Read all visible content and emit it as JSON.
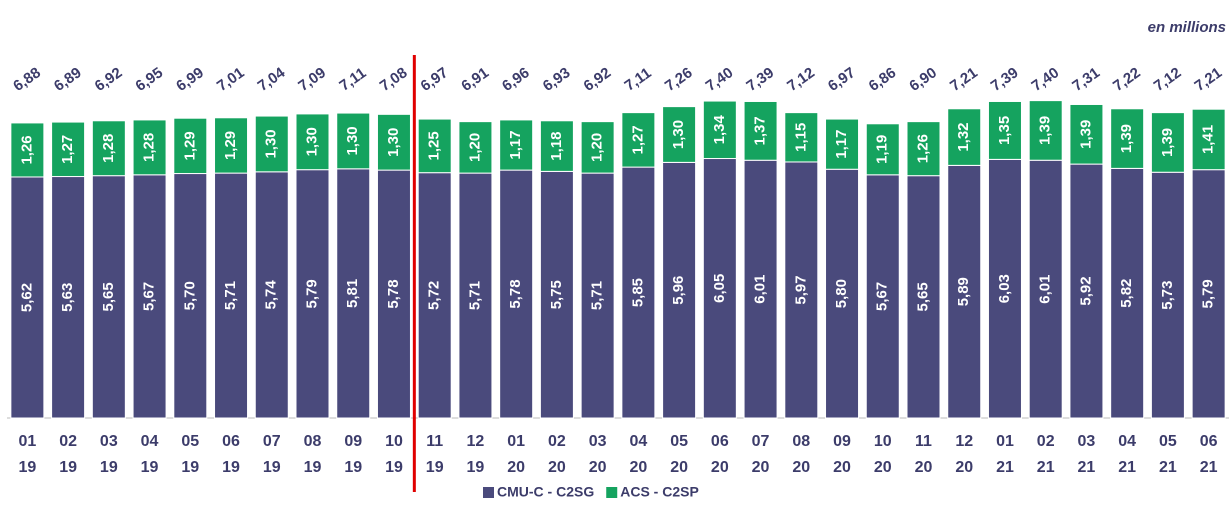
{
  "chart_data": {
    "type": "stacked_bar",
    "annotation": "en millions",
    "categories": [
      [
        "01",
        "19"
      ],
      [
        "02",
        "19"
      ],
      [
        "03",
        "19"
      ],
      [
        "04",
        "19"
      ],
      [
        "05",
        "19"
      ],
      [
        "06",
        "19"
      ],
      [
        "07",
        "19"
      ],
      [
        "08",
        "19"
      ],
      [
        "09",
        "19"
      ],
      [
        "10",
        "19"
      ],
      [
        "11",
        "19"
      ],
      [
        "12",
        "19"
      ],
      [
        "01",
        "20"
      ],
      [
        "02",
        "20"
      ],
      [
        "03",
        "20"
      ],
      [
        "04",
        "20"
      ],
      [
        "05",
        "20"
      ],
      [
        "06",
        "20"
      ],
      [
        "07",
        "20"
      ],
      [
        "08",
        "20"
      ],
      [
        "09",
        "20"
      ],
      [
        "10",
        "20"
      ],
      [
        "11",
        "20"
      ],
      [
        "12",
        "20"
      ],
      [
        "01",
        "21"
      ],
      [
        "02",
        "21"
      ],
      [
        "03",
        "21"
      ],
      [
        "04",
        "21"
      ],
      [
        "05",
        "21"
      ],
      [
        "06",
        "21"
      ]
    ],
    "series": [
      {
        "name": "CMU-C - C2SG",
        "color": "#4a4a7c",
        "values": [
          5.62,
          5.63,
          5.65,
          5.67,
          5.7,
          5.71,
          5.74,
          5.79,
          5.81,
          5.78,
          5.72,
          5.71,
          5.78,
          5.75,
          5.71,
          5.85,
          5.96,
          6.05,
          6.01,
          5.97,
          5.8,
          5.67,
          5.65,
          5.89,
          6.03,
          6.01,
          5.92,
          5.82,
          5.73,
          5.79
        ],
        "value_labels": [
          "5,62",
          "5,63",
          "5,65",
          "5,67",
          "5,70",
          "5,71",
          "5,74",
          "5,79",
          "5,81",
          "5,78",
          "5,72",
          "5,71",
          "5,78",
          "5,75",
          "5,71",
          "5,85",
          "5,96",
          "6,05",
          "6,01",
          "5,97",
          "5,80",
          "5,67",
          "5,65",
          "5,89",
          "6,03",
          "6,01",
          "5,92",
          "5,82",
          "5,73",
          "5,79"
        ]
      },
      {
        "name": "ACS - C2SP",
        "color": "#15a35f",
        "values": [
          1.26,
          1.27,
          1.28,
          1.28,
          1.29,
          1.29,
          1.3,
          1.3,
          1.3,
          1.3,
          1.25,
          1.2,
          1.17,
          1.18,
          1.2,
          1.27,
          1.3,
          1.34,
          1.37,
          1.15,
          1.17,
          1.19,
          1.26,
          1.32,
          1.35,
          1.39,
          1.39,
          1.39,
          1.39,
          1.41
        ],
        "value_labels": [
          "1,26",
          "1,27",
          "1,28",
          "1,28",
          "1,29",
          "1,29",
          "1,30",
          "1,30",
          "1,30",
          "1,30",
          "1,25",
          "1,20",
          "1,17",
          "1,18",
          "1,20",
          "1,27",
          "1,30",
          "1,34",
          "1,37",
          "1,15",
          "1,17",
          "1,19",
          "1,26",
          "1,32",
          "1,35",
          "1,39",
          "1,39",
          "1,39",
          "1,39",
          "1,41"
        ]
      }
    ],
    "totals": [
      6.88,
      6.89,
      6.92,
      6.95,
      6.99,
      7.01,
      7.04,
      7.09,
      7.11,
      7.08,
      6.97,
      6.91,
      6.96,
      6.93,
      6.92,
      7.11,
      7.26,
      7.4,
      7.39,
      7.12,
      6.97,
      6.86,
      6.9,
      7.21,
      7.39,
      7.4,
      7.31,
      7.22,
      7.12,
      7.21
    ],
    "total_labels": [
      "6,88",
      "6,89",
      "6,92",
      "6,95",
      "6,99",
      "7,01",
      "7,04",
      "7,09",
      "7,11",
      "7,08",
      "6,97",
      "6,91",
      "6,96",
      "6,93",
      "6,92",
      "7,11",
      "7,26",
      "7,40",
      "7,39",
      "7,12",
      "6,97",
      "6,86",
      "6,90",
      "7,21",
      "7,39",
      "7,40",
      "7,31",
      "7,22",
      "7,12",
      "7,21"
    ],
    "ylim": [
      0,
      9
    ]
  }
}
